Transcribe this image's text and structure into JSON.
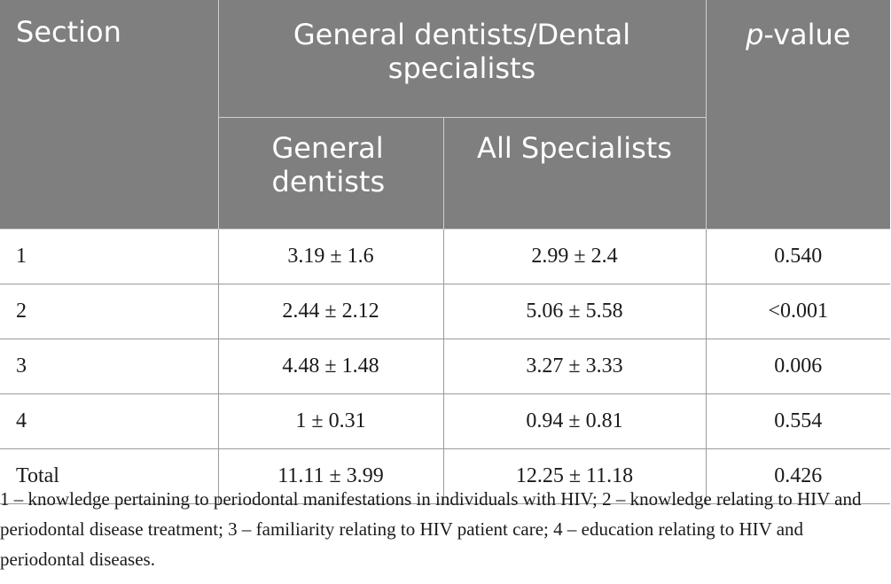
{
  "table": {
    "header": {
      "section": "Section",
      "group_line1": "General dentists/Dental",
      "group_line2": "specialists",
      "pvalue_italic": "p",
      "pvalue_rest": "-value",
      "sub_general_line1": "General",
      "sub_general_line2": "dentists",
      "sub_all": "All Specialists"
    },
    "rows": [
      {
        "section": "1",
        "general": "3.19 ± 1.6",
        "specialists": "2.99 ± 2.4",
        "pvalue": "0.540"
      },
      {
        "section": "2",
        "general": "2.44 ± 2.12",
        "specialists": "5.06 ± 5.58",
        "pvalue": "<0.001"
      },
      {
        "section": "3",
        "general": "4.48 ± 1.48",
        "specialists": "3.27 ± 3.33",
        "pvalue": "0.006"
      },
      {
        "section": "4",
        "general": "1 ± 0.31",
        "specialists": "0.94 ± 0.81",
        "pvalue": "0.554"
      },
      {
        "section": "Total",
        "general": "11.11 ± 3.99",
        "specialists": "12.25 ± 11.18",
        "pvalue": "0.426"
      }
    ]
  },
  "footnote": "1 – knowledge pertaining to periodontal manifestations in individuals with HIV; 2 – knowledge relating to HIV and periodontal disease treatment; 3 – familiarity relating to HIV patient care; 4 – education relating to HIV and periodontal diseases."
}
